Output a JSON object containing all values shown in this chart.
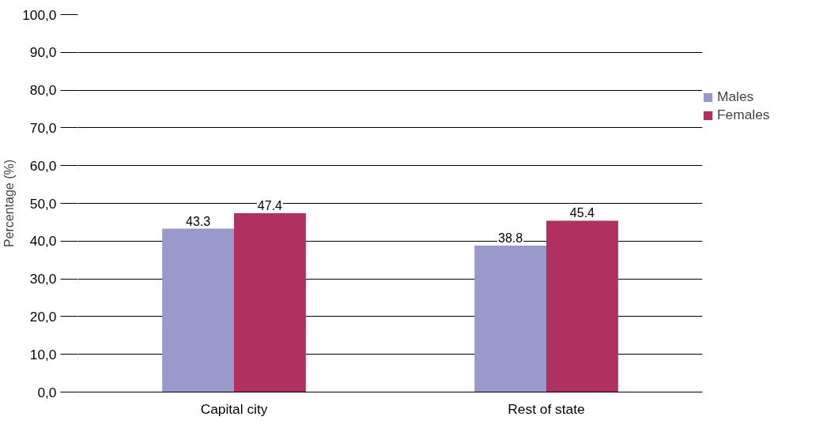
{
  "chart_data": {
    "type": "bar",
    "ylabel": "Percentage (%)",
    "categories": [
      "Capital city",
      "Rest of state"
    ],
    "series": [
      {
        "name": "Males",
        "color": "#9999cc",
        "values": [
          43.3,
          38.8
        ]
      },
      {
        "name": "Females",
        "color": "#b03060",
        "values": [
          47.4,
          45.4
        ]
      }
    ],
    "ylim": [
      0,
      100
    ],
    "yticks": [
      {
        "value": 0,
        "label": "0,0"
      },
      {
        "value": 10,
        "label": "10,0"
      },
      {
        "value": 20,
        "label": "20,0"
      },
      {
        "value": 30,
        "label": "30,0"
      },
      {
        "value": 40,
        "label": "40,0"
      },
      {
        "value": 50,
        "label": "50,0"
      },
      {
        "value": 60,
        "label": "60,0"
      },
      {
        "value": 70,
        "label": "70,0"
      },
      {
        "value": 80,
        "label": "80,0"
      },
      {
        "value": 90,
        "label": "90,0"
      },
      {
        "value": 100,
        "label": "100,0"
      }
    ],
    "grid": "y",
    "legend": "top right",
    "data_labels": true
  }
}
